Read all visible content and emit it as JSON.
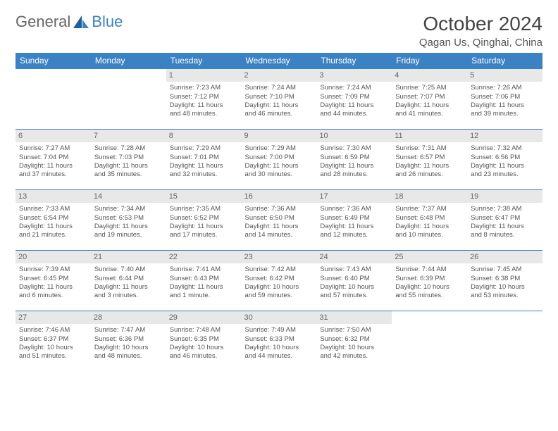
{
  "brand": {
    "part1": "General",
    "part2": "Blue"
  },
  "title": "October 2024",
  "location": "Qagan Us, Qinghai, China",
  "colors": {
    "header_bg": "#3b82c4",
    "header_text": "#ffffff",
    "daynum_bg": "#e8e8e8",
    "border": "#3b82c4",
    "text": "#555555",
    "page_bg": "#ffffff"
  },
  "daynames": [
    "Sunday",
    "Monday",
    "Tuesday",
    "Wednesday",
    "Thursday",
    "Friday",
    "Saturday"
  ],
  "weeks": [
    [
      null,
      null,
      {
        "n": "1",
        "sr": "Sunrise: 7:23 AM",
        "ss": "Sunset: 7:12 PM",
        "dl1": "Daylight: 11 hours",
        "dl2": "and 48 minutes."
      },
      {
        "n": "2",
        "sr": "Sunrise: 7:24 AM",
        "ss": "Sunset: 7:10 PM",
        "dl1": "Daylight: 11 hours",
        "dl2": "and 46 minutes."
      },
      {
        "n": "3",
        "sr": "Sunrise: 7:24 AM",
        "ss": "Sunset: 7:09 PM",
        "dl1": "Daylight: 11 hours",
        "dl2": "and 44 minutes."
      },
      {
        "n": "4",
        "sr": "Sunrise: 7:25 AM",
        "ss": "Sunset: 7:07 PM",
        "dl1": "Daylight: 11 hours",
        "dl2": "and 41 minutes."
      },
      {
        "n": "5",
        "sr": "Sunrise: 7:26 AM",
        "ss": "Sunset: 7:06 PM",
        "dl1": "Daylight: 11 hours",
        "dl2": "and 39 minutes."
      }
    ],
    [
      {
        "n": "6",
        "sr": "Sunrise: 7:27 AM",
        "ss": "Sunset: 7:04 PM",
        "dl1": "Daylight: 11 hours",
        "dl2": "and 37 minutes."
      },
      {
        "n": "7",
        "sr": "Sunrise: 7:28 AM",
        "ss": "Sunset: 7:03 PM",
        "dl1": "Daylight: 11 hours",
        "dl2": "and 35 minutes."
      },
      {
        "n": "8",
        "sr": "Sunrise: 7:29 AM",
        "ss": "Sunset: 7:01 PM",
        "dl1": "Daylight: 11 hours",
        "dl2": "and 32 minutes."
      },
      {
        "n": "9",
        "sr": "Sunrise: 7:29 AM",
        "ss": "Sunset: 7:00 PM",
        "dl1": "Daylight: 11 hours",
        "dl2": "and 30 minutes."
      },
      {
        "n": "10",
        "sr": "Sunrise: 7:30 AM",
        "ss": "Sunset: 6:59 PM",
        "dl1": "Daylight: 11 hours",
        "dl2": "and 28 minutes."
      },
      {
        "n": "11",
        "sr": "Sunrise: 7:31 AM",
        "ss": "Sunset: 6:57 PM",
        "dl1": "Daylight: 11 hours",
        "dl2": "and 26 minutes."
      },
      {
        "n": "12",
        "sr": "Sunrise: 7:32 AM",
        "ss": "Sunset: 6:56 PM",
        "dl1": "Daylight: 11 hours",
        "dl2": "and 23 minutes."
      }
    ],
    [
      {
        "n": "13",
        "sr": "Sunrise: 7:33 AM",
        "ss": "Sunset: 6:54 PM",
        "dl1": "Daylight: 11 hours",
        "dl2": "and 21 minutes."
      },
      {
        "n": "14",
        "sr": "Sunrise: 7:34 AM",
        "ss": "Sunset: 6:53 PM",
        "dl1": "Daylight: 11 hours",
        "dl2": "and 19 minutes."
      },
      {
        "n": "15",
        "sr": "Sunrise: 7:35 AM",
        "ss": "Sunset: 6:52 PM",
        "dl1": "Daylight: 11 hours",
        "dl2": "and 17 minutes."
      },
      {
        "n": "16",
        "sr": "Sunrise: 7:36 AM",
        "ss": "Sunset: 6:50 PM",
        "dl1": "Daylight: 11 hours",
        "dl2": "and 14 minutes."
      },
      {
        "n": "17",
        "sr": "Sunrise: 7:36 AM",
        "ss": "Sunset: 6:49 PM",
        "dl1": "Daylight: 11 hours",
        "dl2": "and 12 minutes."
      },
      {
        "n": "18",
        "sr": "Sunrise: 7:37 AM",
        "ss": "Sunset: 6:48 PM",
        "dl1": "Daylight: 11 hours",
        "dl2": "and 10 minutes."
      },
      {
        "n": "19",
        "sr": "Sunrise: 7:38 AM",
        "ss": "Sunset: 6:47 PM",
        "dl1": "Daylight: 11 hours",
        "dl2": "and 8 minutes."
      }
    ],
    [
      {
        "n": "20",
        "sr": "Sunrise: 7:39 AM",
        "ss": "Sunset: 6:45 PM",
        "dl1": "Daylight: 11 hours",
        "dl2": "and 6 minutes."
      },
      {
        "n": "21",
        "sr": "Sunrise: 7:40 AM",
        "ss": "Sunset: 6:44 PM",
        "dl1": "Daylight: 11 hours",
        "dl2": "and 3 minutes."
      },
      {
        "n": "22",
        "sr": "Sunrise: 7:41 AM",
        "ss": "Sunset: 6:43 PM",
        "dl1": "Daylight: 11 hours",
        "dl2": "and 1 minute."
      },
      {
        "n": "23",
        "sr": "Sunrise: 7:42 AM",
        "ss": "Sunset: 6:42 PM",
        "dl1": "Daylight: 10 hours",
        "dl2": "and 59 minutes."
      },
      {
        "n": "24",
        "sr": "Sunrise: 7:43 AM",
        "ss": "Sunset: 6:40 PM",
        "dl1": "Daylight: 10 hours",
        "dl2": "and 57 minutes."
      },
      {
        "n": "25",
        "sr": "Sunrise: 7:44 AM",
        "ss": "Sunset: 6:39 PM",
        "dl1": "Daylight: 10 hours",
        "dl2": "and 55 minutes."
      },
      {
        "n": "26",
        "sr": "Sunrise: 7:45 AM",
        "ss": "Sunset: 6:38 PM",
        "dl1": "Daylight: 10 hours",
        "dl2": "and 53 minutes."
      }
    ],
    [
      {
        "n": "27",
        "sr": "Sunrise: 7:46 AM",
        "ss": "Sunset: 6:37 PM",
        "dl1": "Daylight: 10 hours",
        "dl2": "and 51 minutes."
      },
      {
        "n": "28",
        "sr": "Sunrise: 7:47 AM",
        "ss": "Sunset: 6:36 PM",
        "dl1": "Daylight: 10 hours",
        "dl2": "and 48 minutes."
      },
      {
        "n": "29",
        "sr": "Sunrise: 7:48 AM",
        "ss": "Sunset: 6:35 PM",
        "dl1": "Daylight: 10 hours",
        "dl2": "and 46 minutes."
      },
      {
        "n": "30",
        "sr": "Sunrise: 7:49 AM",
        "ss": "Sunset: 6:33 PM",
        "dl1": "Daylight: 10 hours",
        "dl2": "and 44 minutes."
      },
      {
        "n": "31",
        "sr": "Sunrise: 7:50 AM",
        "ss": "Sunset: 6:32 PM",
        "dl1": "Daylight: 10 hours",
        "dl2": "and 42 minutes."
      },
      null,
      null
    ]
  ]
}
